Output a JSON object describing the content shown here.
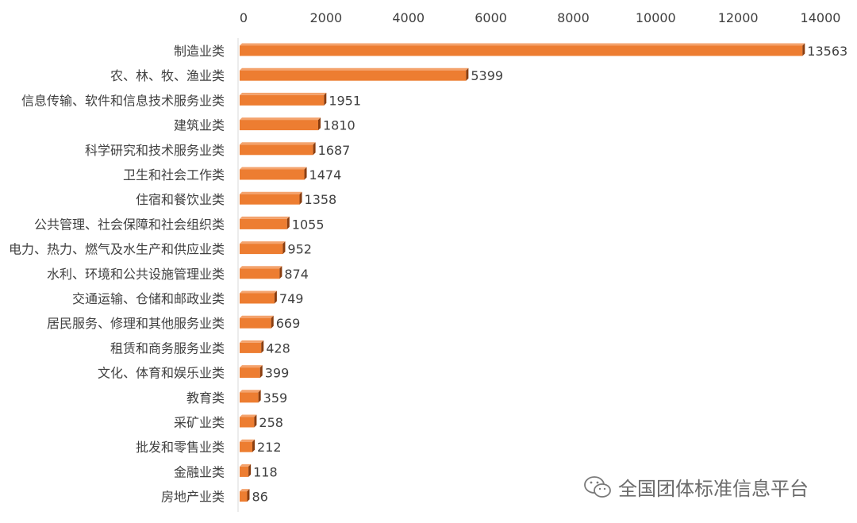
{
  "chart_data": {
    "type": "bar",
    "orientation": "horizontal",
    "title": "",
    "xlabel": "",
    "ylabel": "",
    "xlim": [
      0,
      14000
    ],
    "x_ticks": [
      0,
      2000,
      4000,
      6000,
      8000,
      10000,
      12000,
      14000
    ],
    "x_axis_position": "top",
    "grid": false,
    "bar_color": "#ED7D31",
    "categories": [
      "制造业类",
      "农、林、牧、渔业类",
      "信息传输、软件和信息技术服务业类",
      "建筑业类",
      "科学研究和技术服务业类",
      "卫生和社会工作类",
      "住宿和餐饮业类",
      "公共管理、社会保障和社会组织类",
      "电力、热力、燃气及水生产和供应业类",
      "水利、环境和公共设施管理业类",
      "交通运输、仓储和邮政业类",
      "居民服务、修理和其他服务业类",
      "租赁和商务服务业类",
      "文化、体育和娱乐业类",
      "教育类",
      "采矿业类",
      "批发和零售业类",
      "金融业类",
      "房地产业类"
    ],
    "values": [
      13563,
      5399,
      1951,
      1810,
      1687,
      1474,
      1358,
      1055,
      952,
      874,
      749,
      669,
      428,
      399,
      359,
      258,
      212,
      118,
      86
    ]
  },
  "watermark": {
    "text": "全国团体标准信息平台",
    "icon": "wechat-icon"
  }
}
